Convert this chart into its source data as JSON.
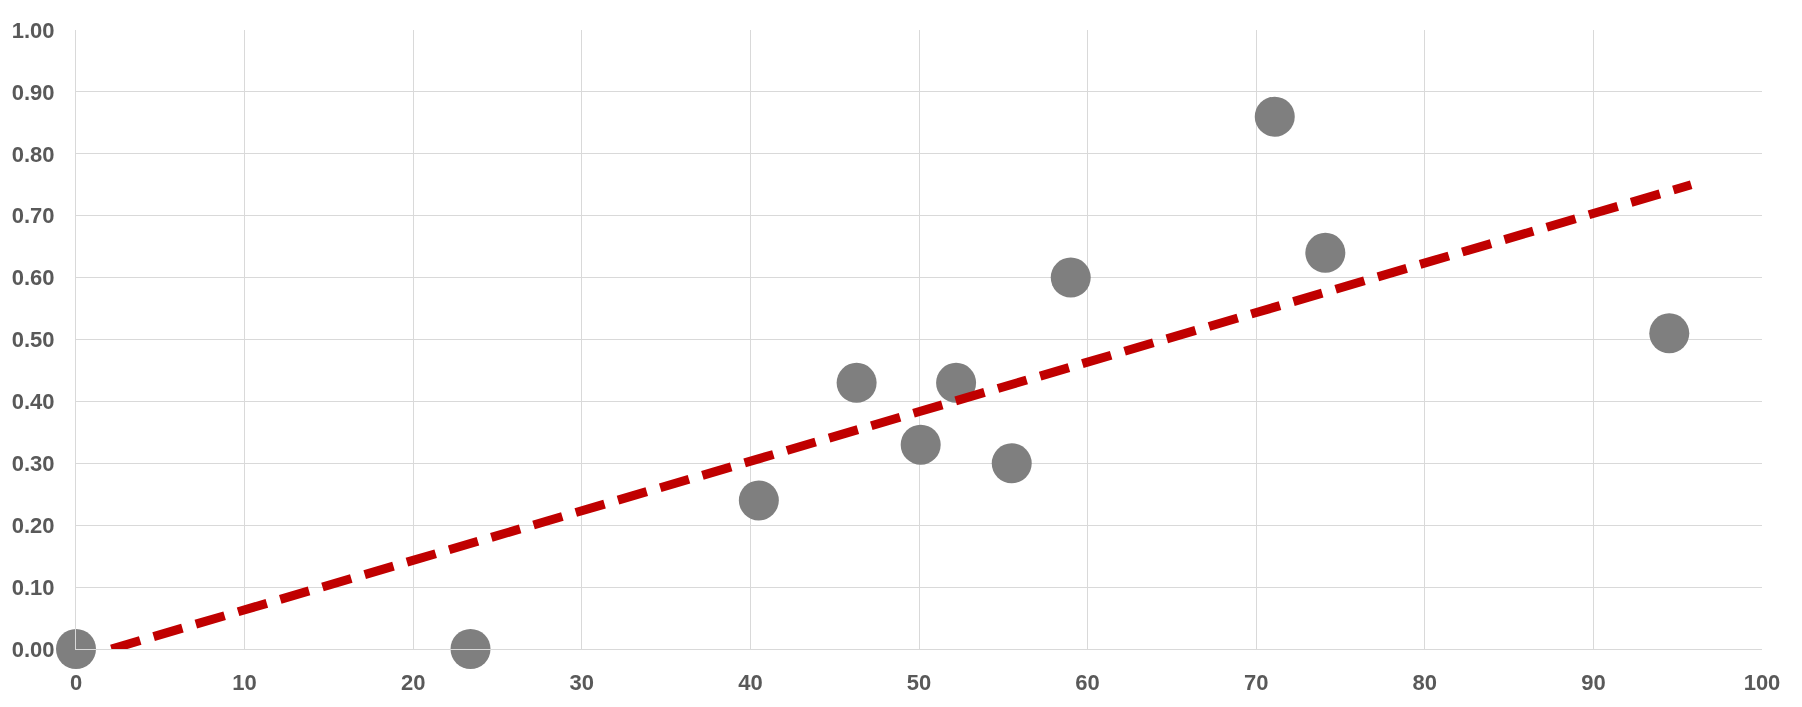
{
  "chart_data": {
    "type": "scatter",
    "xlim": [
      0,
      100
    ],
    "ylim": [
      0,
      1
    ],
    "xticks": [
      0,
      10,
      20,
      30,
      40,
      50,
      60,
      70,
      80,
      90,
      100
    ],
    "yticks": [
      {
        "value": 0,
        "label": "0.00"
      },
      {
        "value": 0.1,
        "label": "0.10"
      },
      {
        "value": 0.2,
        "label": "0.20"
      },
      {
        "value": 0.3,
        "label": "0.30"
      },
      {
        "value": 0.4,
        "label": "0.40"
      },
      {
        "value": 0.5,
        "label": "0.50"
      },
      {
        "value": 0.6,
        "label": "0.60"
      },
      {
        "value": 0.7,
        "label": "0.70"
      },
      {
        "value": 0.8,
        "label": "0.80"
      },
      {
        "value": 0.9,
        "label": "0.90"
      },
      {
        "value": 1,
        "label": "1.00"
      }
    ],
    "grid": true,
    "legend": false,
    "series": [
      {
        "color": "#7f7f7f",
        "marker": "circle",
        "x": [
          0,
          23.4,
          40.5,
          46.3,
          50.1,
          52.2,
          55.5,
          59.0,
          71.1,
          74.1,
          94.5
        ],
        "values": [
          0,
          0,
          0.24,
          0.43,
          0.33,
          0.43,
          0.3,
          0.6,
          0.86,
          0.64,
          0.51
        ]
      },
      {
        "type": "line",
        "marker": "none",
        "color": "#c00000",
        "line_style": "dashed",
        "x": [
          2.1,
          95.8
        ],
        "values": [
          0,
          0.75
        ]
      }
    ]
  }
}
